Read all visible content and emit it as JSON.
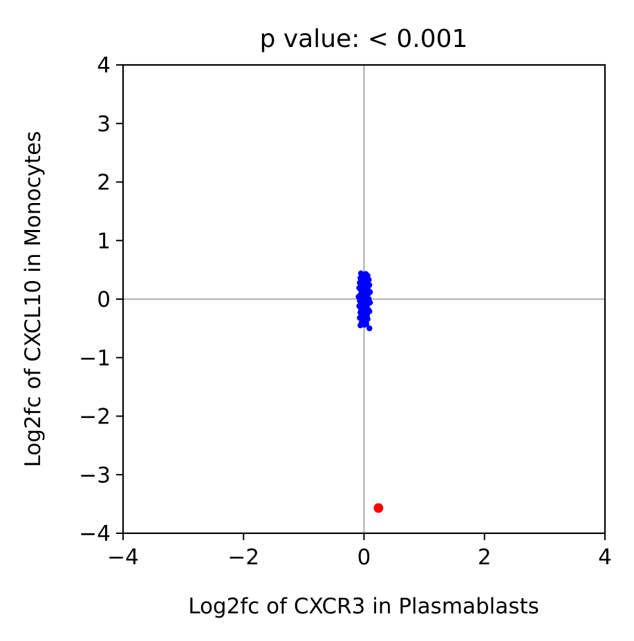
{
  "chart_data": {
    "type": "scatter",
    "title": "p value: < 0.001",
    "xlabel": "Log2fc of CXCR3 in Plasmablasts",
    "ylabel": "Log2fc of CXCL10 in Monocytes",
    "xlim": [
      -4,
      4
    ],
    "ylim": [
      -4,
      4
    ],
    "xticks": [
      -4,
      -2,
      0,
      2,
      4
    ],
    "yticks": [
      -4,
      -3,
      -2,
      -1,
      0,
      1,
      2,
      3,
      4
    ],
    "xtick_labels": [
      "−4",
      "−2",
      "0",
      "2",
      "4"
    ],
    "ytick_labels": [
      "−4",
      "−3",
      "−2",
      "−1",
      "0",
      "1",
      "2",
      "3",
      "4"
    ],
    "reference_lines": {
      "x": 0,
      "y": 0,
      "color": "#808080"
    },
    "grid": false,
    "series": [
      {
        "color": "#0000ff",
        "points": [
          [
            -0.05,
            0.44
          ],
          [
            0.03,
            0.43
          ],
          [
            -0.02,
            0.41
          ],
          [
            0.06,
            0.4
          ],
          [
            0.0,
            0.38
          ],
          [
            -0.06,
            0.36
          ],
          [
            0.04,
            0.35
          ],
          [
            0.08,
            0.33
          ],
          [
            -0.03,
            0.32
          ],
          [
            0.01,
            0.3
          ],
          [
            -0.07,
            0.28
          ],
          [
            0.05,
            0.27
          ],
          [
            -0.01,
            0.25
          ],
          [
            0.09,
            0.24
          ],
          [
            -0.04,
            0.22
          ],
          [
            0.02,
            0.21
          ],
          [
            -0.08,
            0.19
          ],
          [
            0.06,
            0.18
          ],
          [
            0.0,
            0.16
          ],
          [
            -0.05,
            0.15
          ],
          [
            0.04,
            0.13
          ],
          [
            0.1,
            0.12
          ],
          [
            -0.02,
            0.1
          ],
          [
            0.07,
            0.09
          ],
          [
            -0.06,
            0.07
          ],
          [
            0.01,
            0.06
          ],
          [
            -0.09,
            0.04
          ],
          [
            0.05,
            0.03
          ],
          [
            -0.03,
            0.01
          ],
          [
            0.08,
            0.0
          ],
          [
            0.0,
            -0.02
          ],
          [
            -0.07,
            -0.03
          ],
          [
            0.03,
            -0.05
          ],
          [
            0.1,
            -0.06
          ],
          [
            -0.04,
            -0.08
          ],
          [
            0.06,
            -0.09
          ],
          [
            -0.01,
            -0.11
          ],
          [
            -0.08,
            -0.12
          ],
          [
            0.04,
            -0.14
          ],
          [
            0.01,
            -0.15
          ],
          [
            -0.05,
            -0.17
          ],
          [
            0.07,
            -0.18
          ],
          [
            -0.02,
            -0.2
          ],
          [
            0.09,
            -0.21
          ],
          [
            -0.06,
            -0.23
          ],
          [
            0.02,
            -0.24
          ],
          [
            -0.03,
            -0.26
          ],
          [
            0.05,
            -0.28
          ],
          [
            0.0,
            -0.3
          ],
          [
            -0.07,
            -0.32
          ],
          [
            0.06,
            -0.34
          ],
          [
            -0.01,
            -0.36
          ],
          [
            0.03,
            -0.38
          ],
          [
            -0.04,
            -0.4
          ],
          [
            0.04,
            -0.42
          ],
          [
            -0.06,
            -0.45
          ],
          [
            0.01,
            -0.44
          ],
          [
            0.09,
            -0.5
          ],
          [
            -0.02,
            0.05
          ],
          [
            0.02,
            -0.1
          ]
        ]
      },
      {
        "color": "#ff0000",
        "points": [
          [
            0.24,
            -3.57
          ]
        ]
      }
    ]
  }
}
